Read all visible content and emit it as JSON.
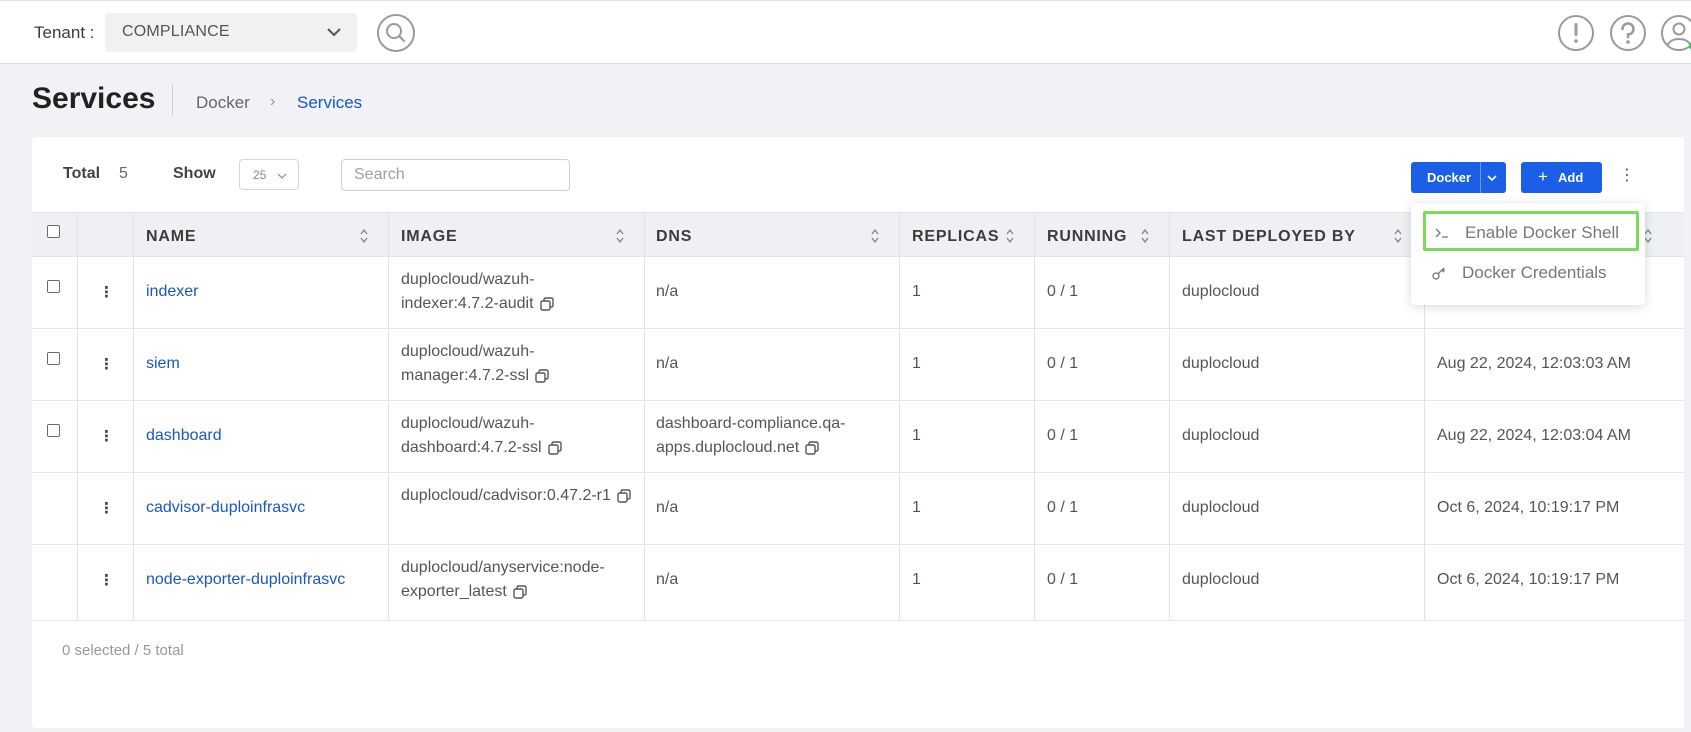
{
  "header": {
    "tenant_label": "Tenant :",
    "tenant_value": "COMPLIANCE",
    "icons": [
      "search-icon",
      "alert-icon",
      "help-icon",
      "user-icon"
    ]
  },
  "page": {
    "title": "Services",
    "breadcrumb": [
      "Docker",
      "Services"
    ]
  },
  "toolbar": {
    "total_label": "Total",
    "total_value": "5",
    "show_label": "Show",
    "show_value": "25",
    "search_placeholder": "Search",
    "docker_label": "Docker",
    "add_label": "Add"
  },
  "table": {
    "columns": [
      "NAME",
      "IMAGE",
      "DNS",
      "REPLICAS",
      "RUNNING",
      "LAST DEPLOYED BY"
    ],
    "rows": [
      {
        "name": "indexer",
        "image": "duplocloud/wazuh-indexer:4.7.2-audit",
        "dns": "n/a",
        "replicas": "1",
        "running": "0 / 1",
        "deployed_by": "duplocloud",
        "date": ""
      },
      {
        "name": "siem",
        "image": "duplocloud/wazuh-manager:4.7.2-ssl",
        "dns": "n/a",
        "replicas": "1",
        "running": "0 / 1",
        "deployed_by": "duplocloud",
        "date": "Aug 22, 2024, 12:03:03 AM"
      },
      {
        "name": "dashboard",
        "image": "duplocloud/wazuh-dashboard:4.7.2-ssl",
        "dns": "dashboard-compliance.qa-apps.duplocloud.net",
        "replicas": "1",
        "running": "0 / 1",
        "deployed_by": "duplocloud",
        "date": "Aug 22, 2024, 12:03:04 AM"
      },
      {
        "name": "cadvisor-duploinfrasvc",
        "image": "duplocloud/cadvisor:0.47.2-r1",
        "dns": "n/a",
        "replicas": "1",
        "running": "0 / 1",
        "deployed_by": "duplocloud",
        "date": "Oct 6, 2024, 10:19:17 PM"
      },
      {
        "name": "node-exporter-duploinfrasvc",
        "image": "duplocloud/anyservice:node-exporter_latest",
        "dns": "n/a",
        "replicas": "1",
        "running": "0 / 1",
        "deployed_by": "duplocloud",
        "date": "Oct 6, 2024, 10:19:17 PM"
      }
    ],
    "footer": "0 selected / 5 total"
  },
  "docker_menu": {
    "items": [
      {
        "label": "Enable Docker Shell",
        "icon": "terminal-icon",
        "highlighted": true
      },
      {
        "label": "Docker Credentials",
        "icon": "key-icon",
        "highlighted": false
      }
    ]
  },
  "colors": {
    "primary": "#1a5fe6",
    "link": "#1a56c6",
    "highlight": "#7ed957"
  }
}
